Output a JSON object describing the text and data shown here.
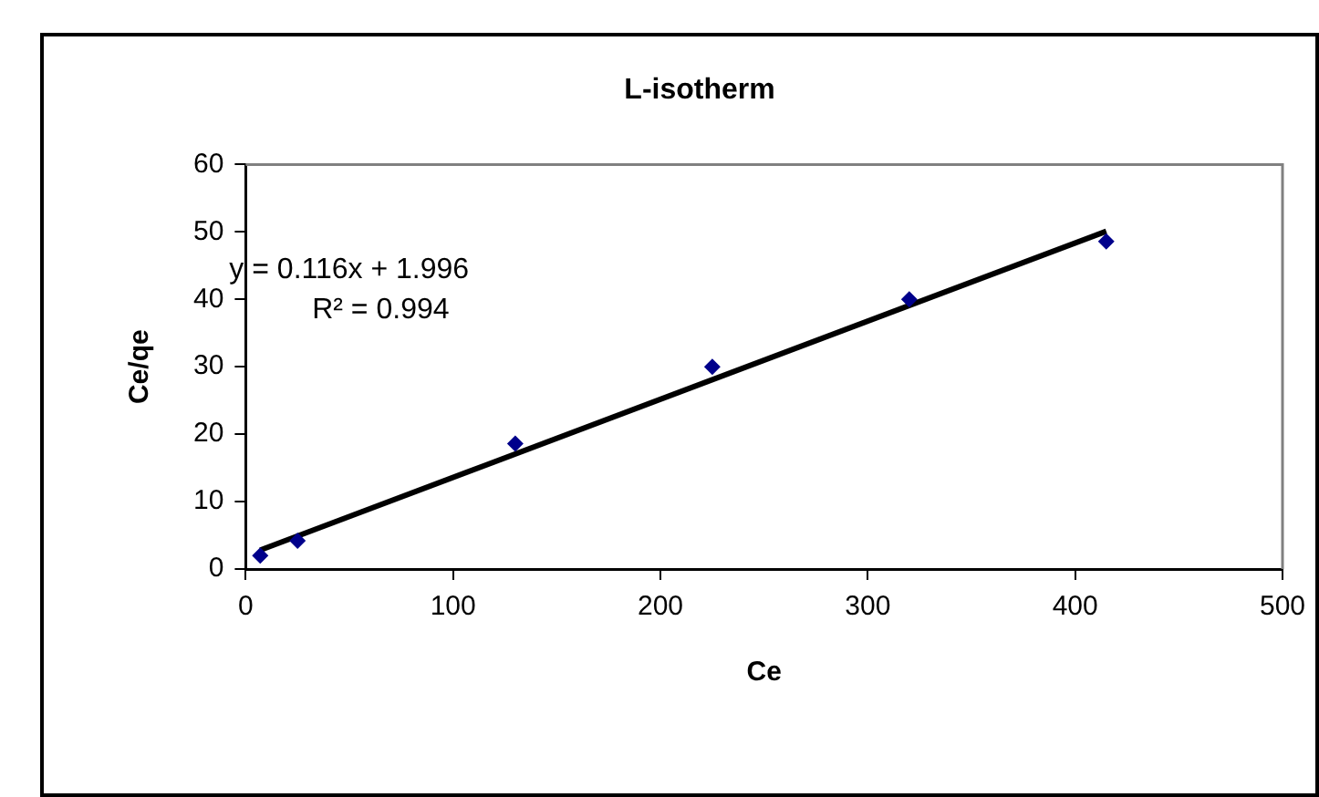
{
  "chart_data": {
    "type": "scatter",
    "title": "L-isotherm",
    "xlabel": "Ce",
    "ylabel": "Ce/qe",
    "x": [
      7,
      25,
      130,
      225,
      320,
      415
    ],
    "series": [
      {
        "color": "#00008b",
        "marker": "diamond",
        "values": [
          2.0,
          4.2,
          18.6,
          30,
          40,
          48.6
        ]
      },
      {
        "type": "line",
        "color": "#000000",
        "marker": "none",
        "x": [
          7,
          415
        ],
        "values": [
          2.8,
          50.1
        ]
      }
    ],
    "xlim": [
      0,
      500
    ],
    "xticks": [
      0,
      100,
      200,
      300,
      400,
      500
    ],
    "ylim": [
      0,
      60
    ],
    "yticks": [
      0,
      10,
      20,
      30,
      40,
      50,
      60
    ],
    "grid": false,
    "legend": false,
    "annotations": [
      "y = 0.116x + 1.996",
      "R² = 0.994"
    ]
  }
}
